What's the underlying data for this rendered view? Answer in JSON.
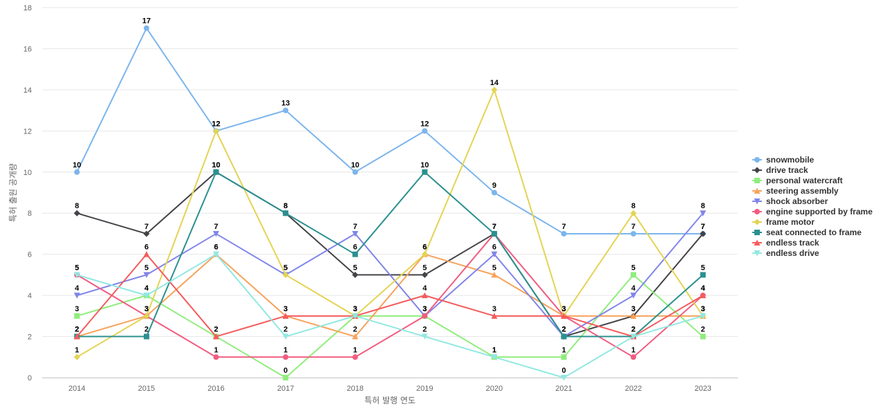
{
  "chart_data": {
    "type": "line",
    "xlabel": "특허 발행 연도",
    "ylabel": "특허 출원 공개량",
    "ylim": [
      0,
      18
    ],
    "yticks": [
      0,
      2,
      4,
      6,
      8,
      10,
      12,
      14,
      16,
      18
    ],
    "x": [
      "2014",
      "2015",
      "2016",
      "2017",
      "2018",
      "2019",
      "2020",
      "2021",
      "2022",
      "2023"
    ],
    "grid": true,
    "legend_position": "right",
    "series": [
      {
        "name": "snowmobile",
        "color": "#7cb5ec",
        "marker": "circle",
        "values": [
          10,
          17,
          12,
          13,
          10,
          12,
          9,
          7,
          7,
          7
        ]
      },
      {
        "name": "drive track",
        "color": "#434348",
        "marker": "diamond",
        "values": [
          8,
          7,
          10,
          8,
          5,
          5,
          7,
          2,
          3,
          7
        ]
      },
      {
        "name": "personal watercraft",
        "color": "#90ed7d",
        "marker": "square",
        "values": [
          3,
          4,
          2,
          0,
          3,
          3,
          1,
          1,
          5,
          2
        ]
      },
      {
        "name": "steering assembly",
        "color": "#f7a35c",
        "marker": "triangle",
        "values": [
          2,
          3,
          6,
          3,
          2,
          6,
          5,
          3,
          3,
          3
        ]
      },
      {
        "name": "shock absorber",
        "color": "#8085e9",
        "marker": "triangle-down",
        "values": [
          4,
          5,
          7,
          5,
          7,
          3,
          6,
          2,
          4,
          8
        ]
      },
      {
        "name": "engine supported by frame",
        "color": "#f15c80",
        "marker": "circle",
        "values": [
          5,
          3,
          1,
          1,
          1,
          3,
          7,
          3,
          1,
          4
        ]
      },
      {
        "name": "frame motor",
        "color": "#e4d354",
        "marker": "diamond",
        "values": [
          1,
          3,
          12,
          5,
          3,
          6,
          14,
          3,
          8,
          3
        ]
      },
      {
        "name": "seat connected to frame",
        "color": "#2b908f",
        "marker": "square",
        "values": [
          2,
          2,
          10,
          8,
          6,
          10,
          7,
          2,
          2,
          5
        ]
      },
      {
        "name": "endless track",
        "color": "#f45b5b",
        "marker": "triangle",
        "values": [
          2,
          6,
          2,
          3,
          3,
          4,
          3,
          3,
          2,
          4
        ]
      },
      {
        "name": "endless drive",
        "color": "#91e8e1",
        "marker": "triangle-down",
        "values": [
          5,
          4,
          6,
          2,
          3,
          2,
          1,
          0,
          2,
          3
        ]
      }
    ]
  }
}
